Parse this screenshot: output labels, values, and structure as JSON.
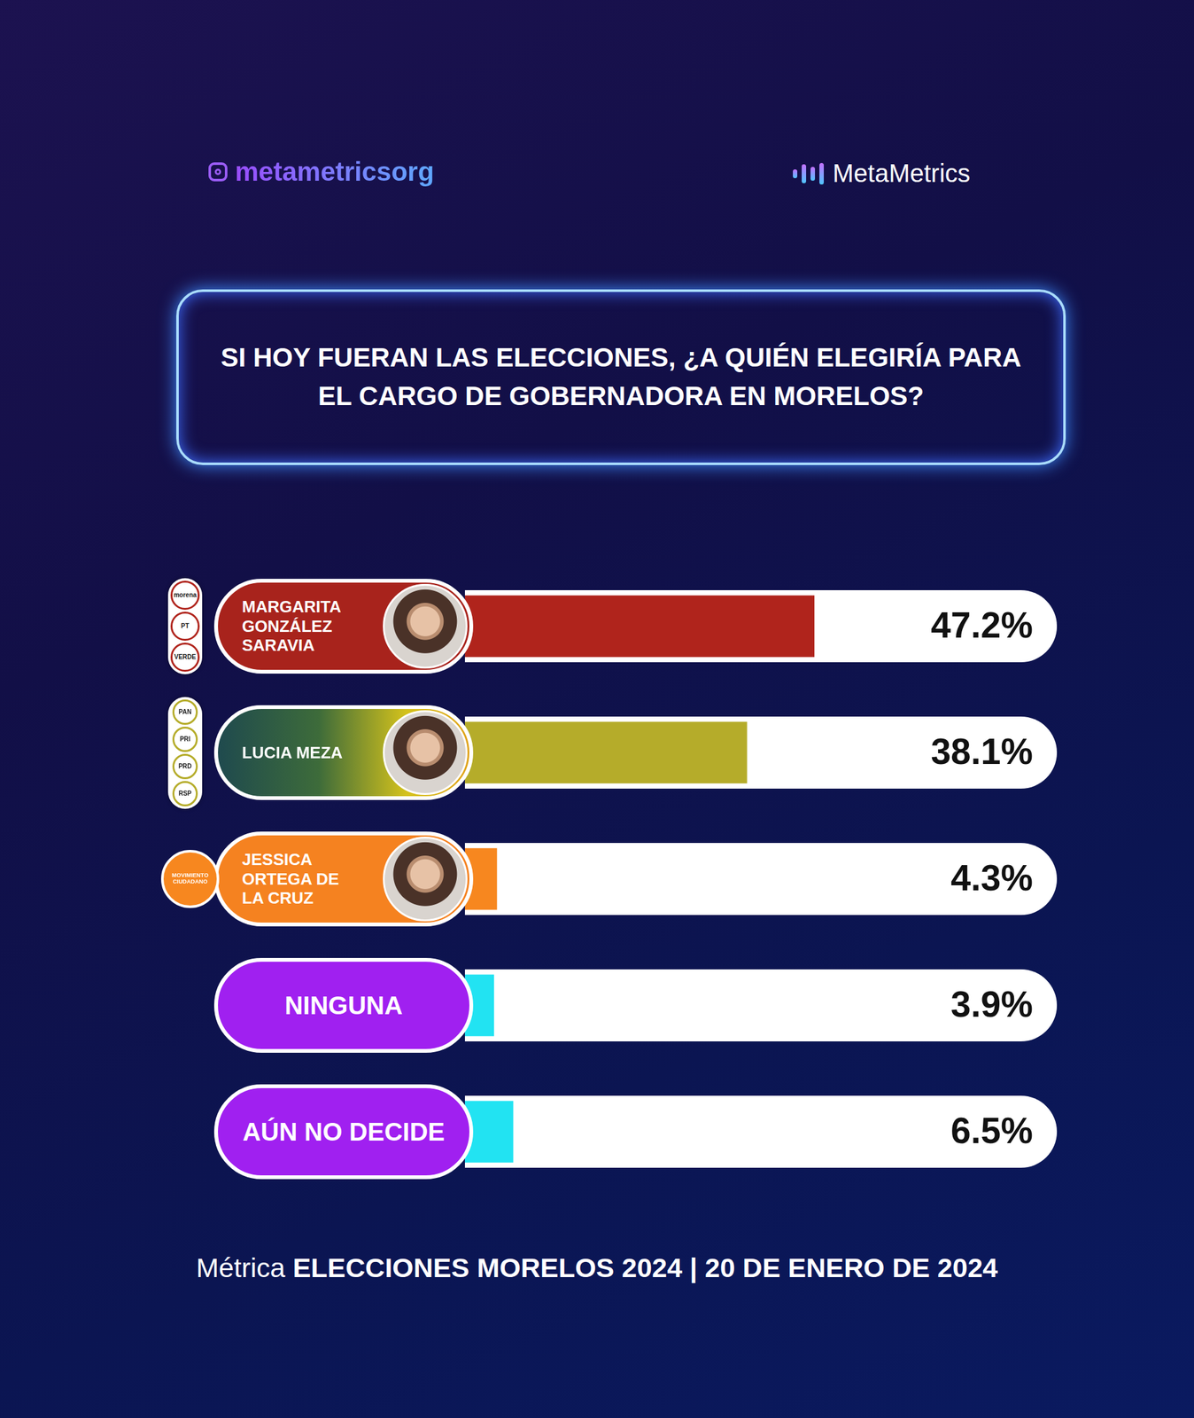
{
  "chart_data": {
    "type": "bar",
    "orientation": "horizontal",
    "header": [
      "metametricsorg",
      "MetaMetrics"
    ],
    "title": "SI HOY FUERAN LAS ELECCIONES, ¿A QUIÉN ELEGIRÍA PARA EL CARGO DE GOBERNADORA EN MORELOS?",
    "footer": "Métrica ELECCIONES MORELOS 2024 | 20 DE ENERO DE 2024",
    "categories": [
      "MARGARITA GONZÁLEZ SARAVIA",
      "LUCIA MEZA",
      "JESSICA ORTEGA DE LA CRUZ",
      "NINGUNA",
      "AÚN NO DECIDE"
    ],
    "parties": [
      [
        "morena",
        "PT",
        "VERDE"
      ],
      [
        "PAN",
        "PRI",
        "PRD",
        "RSP"
      ],
      [
        "MOVIMIENTO CIUDADANO"
      ],
      [],
      []
    ],
    "values": [
      47.2,
      38.1,
      4.3,
      3.9,
      6.5
    ],
    "value_labels": [
      "47.2%",
      "38.1%",
      "4.3%",
      "3.9%",
      "6.5%"
    ],
    "colors": [
      "#b0241c",
      "#b5ac2a",
      "#f7871f",
      "#22e3f2",
      "#22e3f2"
    ],
    "xlim": [
      0,
      80
    ],
    "grid": false,
    "tick_labels": false,
    "data_labels": true
  }
}
